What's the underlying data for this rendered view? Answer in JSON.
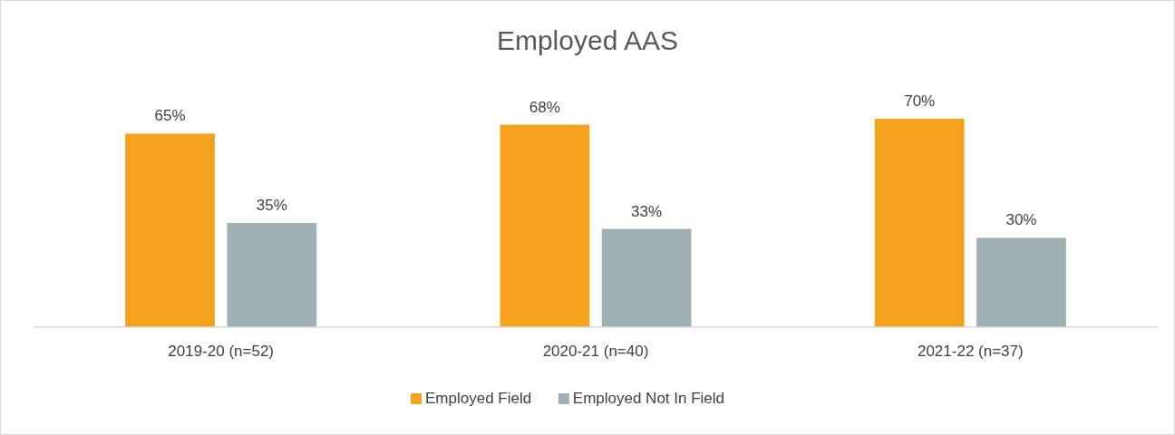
{
  "chart_data": {
    "type": "bar",
    "title": "Employed AAS",
    "categories": [
      "2019-20 (n=52)",
      "2020-21 (n=40)",
      "2021-22 (n=37)"
    ],
    "series": [
      {
        "name": "Employed Field",
        "color": "#f5a31f",
        "values": [
          65,
          68,
          70
        ],
        "value_labels": [
          "65%",
          "68%",
          "70%"
        ]
      },
      {
        "name": "Employed Not In Field",
        "color": "#9fb0b4",
        "values": [
          35,
          33,
          30
        ],
        "value_labels": [
          "35%",
          "33%",
          "30%"
        ]
      }
    ],
    "legend": "bottom",
    "grid": false,
    "tick_labels": "x"
  }
}
